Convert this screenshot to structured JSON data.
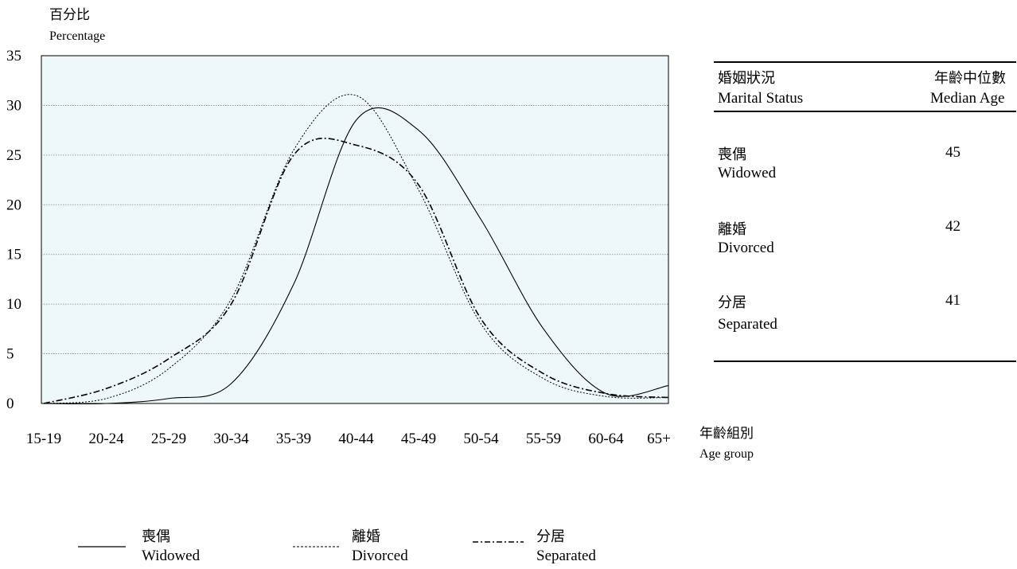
{
  "chart_data": {
    "type": "line",
    "ylabel_cn": "百分比",
    "ylabel_en": "Percentage",
    "xlabel_cn": "年齡組別",
    "xlabel_en": "Age group",
    "ylim": [
      0,
      35
    ],
    "yticks": [
      "35",
      "30",
      "25",
      "20",
      "15",
      "10",
      "5",
      "0"
    ],
    "categories": [
      "15-19",
      "20-24",
      "25-29",
      "30-34",
      "35-39",
      "40-44",
      "45-49",
      "50-54",
      "55-59",
      "60-64",
      "65+"
    ],
    "grid": "horizontal dotted",
    "series": [
      {
        "name": "Widowed",
        "name_cn": "喪偶",
        "style": "solid",
        "values": [
          0.0,
          0.0,
          0.5,
          2.0,
          12.0,
          28.5,
          27.5,
          18.5,
          7.5,
          1.0,
          1.8
        ]
      },
      {
        "name": "Divorced",
        "name_cn": "離婚",
        "style": "dotted",
        "values": [
          0.0,
          0.5,
          3.5,
          10.5,
          25.5,
          31.0,
          21.5,
          8.0,
          2.5,
          0.7,
          0.6
        ]
      },
      {
        "name": "Separated",
        "name_cn": "分居",
        "style": "dashdot",
        "values": [
          0.0,
          1.5,
          4.5,
          10.0,
          25.0,
          26.0,
          22.0,
          8.5,
          3.0,
          1.0,
          0.6
        ]
      }
    ]
  },
  "table": {
    "header": {
      "status_cn": "婚姻狀況",
      "status_en": "Marital Status",
      "age_cn": "年齡中位數",
      "age_en": "Median Age"
    },
    "rows": [
      {
        "cn": "喪偶",
        "en": "Widowed",
        "age": "45"
      },
      {
        "cn": "離婚",
        "en": "Divorced",
        "age": "42"
      },
      {
        "cn": "分居",
        "en": "Separated",
        "age": "41"
      }
    ]
  },
  "legend": [
    {
      "cn": "喪偶",
      "en": "Widowed"
    },
    {
      "cn": "離婚",
      "en": "Divorced"
    },
    {
      "cn": "分居",
      "en": "Separated"
    }
  ],
  "colors": {
    "plot_bg": "#eef7fa",
    "line": "#000000",
    "grid": "#888888"
  }
}
